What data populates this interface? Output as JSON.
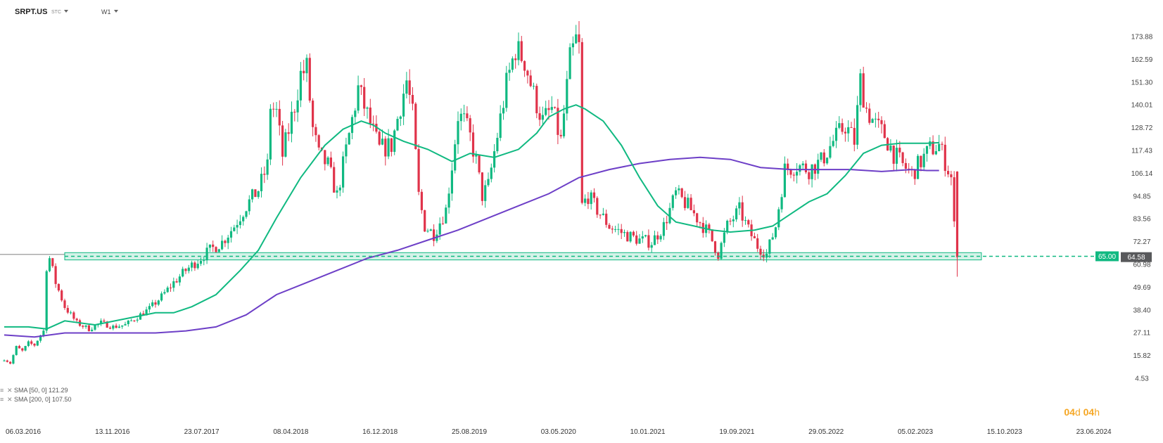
{
  "header": {
    "symbol": "SRPT.US",
    "symbol_sub": "STC",
    "timeframe": "W1"
  },
  "timer": {
    "days": "04",
    "day_unit": "d",
    "hours": "04",
    "hour_unit": "h"
  },
  "indicators": [
    {
      "label": "SMA [50, 0] 121.29",
      "color": "#10b981"
    },
    {
      "label": "SMA [200, 0] 107.50",
      "color": "#6d3fc7"
    }
  ],
  "colors": {
    "bull": "#10b981",
    "bear": "#e0334a",
    "sma50": "#10b981",
    "sma200": "#6d3fc7",
    "zone": "#10b981",
    "price_tag": "#58595b"
  },
  "chart_data": {
    "type": "candlestick",
    "interval": "W1",
    "y_ticks": [
      173.88,
      162.59,
      151.3,
      140.01,
      128.72,
      117.43,
      106.14,
      94.85,
      83.56,
      72.27,
      60.98,
      49.69,
      38.4,
      27.11,
      15.82,
      4.53
    ],
    "x_ticks": [
      "06.03.2016",
      "13.11.2016",
      "23.07.2017",
      "08.04.2018",
      "16.12.2018",
      "25.08.2019",
      "03.05.2020",
      "10.01.2021",
      "19.09.2021",
      "29.05.2022",
      "05.02.2023",
      "15.10.2023",
      "23.06.2024"
    ],
    "ylim": [
      4.53,
      180
    ],
    "support_zone": [
      63.2,
      66.8
    ],
    "level_label": "65.00",
    "last_price": "64.58",
    "last_price_value": 64.58,
    "sma50_last": 121.29,
    "sma200_last": 107.5,
    "path_points": [
      [
        0,
        14
      ],
      [
        2,
        12
      ],
      [
        4,
        20
      ],
      [
        6,
        18
      ],
      [
        8,
        22
      ],
      [
        10,
        21
      ],
      [
        12,
        26
      ],
      [
        13,
        28
      ],
      [
        14,
        60
      ],
      [
        15,
        64
      ],
      [
        17,
        52
      ],
      [
        20,
        40
      ],
      [
        24,
        32
      ],
      [
        28,
        29
      ],
      [
        32,
        32
      ],
      [
        36,
        30
      ],
      [
        40,
        31
      ],
      [
        44,
        35
      ],
      [
        48,
        39
      ],
      [
        52,
        45
      ],
      [
        56,
        52
      ],
      [
        60,
        58
      ],
      [
        64,
        63
      ],
      [
        68,
        68
      ],
      [
        72,
        72
      ],
      [
        76,
        80
      ],
      [
        80,
        90
      ],
      [
        84,
        98
      ],
      [
        87,
        110
      ],
      [
        88,
        140
      ],
      [
        90,
        136
      ],
      [
        92,
        115
      ],
      [
        96,
        140
      ],
      [
        98,
        155
      ],
      [
        100,
        158
      ],
      [
        102,
        128
      ],
      [
        104,
        115
      ],
      [
        107,
        110
      ],
      [
        110,
        95
      ],
      [
        114,
        125
      ],
      [
        117,
        148
      ],
      [
        120,
        135
      ],
      [
        124,
        118
      ],
      [
        128,
        120
      ],
      [
        131,
        140
      ],
      [
        133,
        152
      ],
      [
        135,
        135
      ],
      [
        137,
        95
      ],
      [
        139,
        80
      ],
      [
        142,
        76
      ],
      [
        146,
        88
      ],
      [
        148,
        110
      ],
      [
        150,
        135
      ],
      [
        152,
        132
      ],
      [
        154,
        124
      ],
      [
        156,
        112
      ],
      [
        158,
        95
      ],
      [
        160,
        100
      ],
      [
        163,
        125
      ],
      [
        166,
        150
      ],
      [
        169,
        168
      ],
      [
        172,
        162
      ],
      [
        175,
        145
      ],
      [
        178,
        132
      ],
      [
        181,
        138
      ],
      [
        184,
        122
      ],
      [
        187,
        162
      ],
      [
        189,
        172
      ],
      [
        190,
        168
      ],
      [
        191,
        90
      ],
      [
        193,
        95
      ],
      [
        196,
        88
      ],
      [
        200,
        80
      ],
      [
        205,
        76
      ],
      [
        210,
        73
      ],
      [
        214,
        72
      ],
      [
        218,
        80
      ],
      [
        222,
        96
      ],
      [
        226,
        90
      ],
      [
        230,
        82
      ],
      [
        233,
        76
      ],
      [
        236,
        66
      ],
      [
        239,
        80
      ],
      [
        243,
        88
      ],
      [
        246,
        78
      ],
      [
        249,
        70
      ],
      [
        252,
        66
      ],
      [
        255,
        80
      ],
      [
        258,
        108
      ],
      [
        262,
        110
      ],
      [
        266,
        108
      ],
      [
        270,
        112
      ],
      [
        274,
        122
      ],
      [
        278,
        130
      ],
      [
        281,
        122
      ],
      [
        283,
        152
      ],
      [
        285,
        138
      ],
      [
        288,
        130
      ],
      [
        291,
        125
      ],
      [
        294,
        116
      ],
      [
        297,
        110
      ],
      [
        300,
        106
      ],
      [
        303,
        112
      ],
      [
        306,
        118
      ],
      [
        309,
        120
      ],
      [
        311,
        112
      ],
      [
        313,
        104
      ],
      [
        314,
        80
      ],
      [
        315,
        64.58
      ]
    ],
    "sma50_points": [
      [
        0,
        30
      ],
      [
        8,
        30
      ],
      [
        14,
        29
      ],
      [
        20,
        33
      ],
      [
        30,
        31
      ],
      [
        40,
        34
      ],
      [
        50,
        37
      ],
      [
        56,
        37
      ],
      [
        62,
        40
      ],
      [
        70,
        46
      ],
      [
        78,
        58
      ],
      [
        84,
        68
      ],
      [
        90,
        84
      ],
      [
        98,
        104
      ],
      [
        106,
        120
      ],
      [
        112,
        128
      ],
      [
        118,
        132
      ],
      [
        122,
        130
      ],
      [
        126,
        126
      ],
      [
        132,
        122
      ],
      [
        140,
        118
      ],
      [
        148,
        112
      ],
      [
        154,
        116
      ],
      [
        162,
        114
      ],
      [
        170,
        118
      ],
      [
        176,
        126
      ],
      [
        180,
        134
      ],
      [
        185,
        138
      ],
      [
        189,
        140
      ],
      [
        192,
        138
      ],
      [
        198,
        132
      ],
      [
        204,
        120
      ],
      [
        210,
        104
      ],
      [
        216,
        90
      ],
      [
        222,
        82
      ],
      [
        228,
        80
      ],
      [
        234,
        78
      ],
      [
        240,
        77
      ],
      [
        248,
        78
      ],
      [
        254,
        80
      ],
      [
        260,
        86
      ],
      [
        266,
        92
      ],
      [
        272,
        96
      ],
      [
        278,
        105
      ],
      [
        284,
        116
      ],
      [
        290,
        120
      ],
      [
        296,
        121
      ],
      [
        300,
        121
      ],
      [
        305,
        121
      ],
      [
        309,
        121.29
      ]
    ],
    "sma200_points": [
      [
        0,
        26
      ],
      [
        10,
        25
      ],
      [
        20,
        27
      ],
      [
        30,
        27
      ],
      [
        40,
        27
      ],
      [
        50,
        27
      ],
      [
        60,
        28
      ],
      [
        70,
        30
      ],
      [
        80,
        36
      ],
      [
        90,
        46
      ],
      [
        100,
        52
      ],
      [
        110,
        58
      ],
      [
        120,
        64
      ],
      [
        130,
        68
      ],
      [
        140,
        73
      ],
      [
        150,
        78
      ],
      [
        160,
        84
      ],
      [
        170,
        90
      ],
      [
        180,
        96
      ],
      [
        190,
        104
      ],
      [
        200,
        108
      ],
      [
        210,
        111
      ],
      [
        220,
        113
      ],
      [
        230,
        114
      ],
      [
        240,
        113
      ],
      [
        250,
        109
      ],
      [
        260,
        108
      ],
      [
        270,
        108
      ],
      [
        280,
        108
      ],
      [
        290,
        107
      ],
      [
        300,
        108
      ],
      [
        305,
        107.5
      ],
      [
        309,
        107.5
      ]
    ]
  }
}
